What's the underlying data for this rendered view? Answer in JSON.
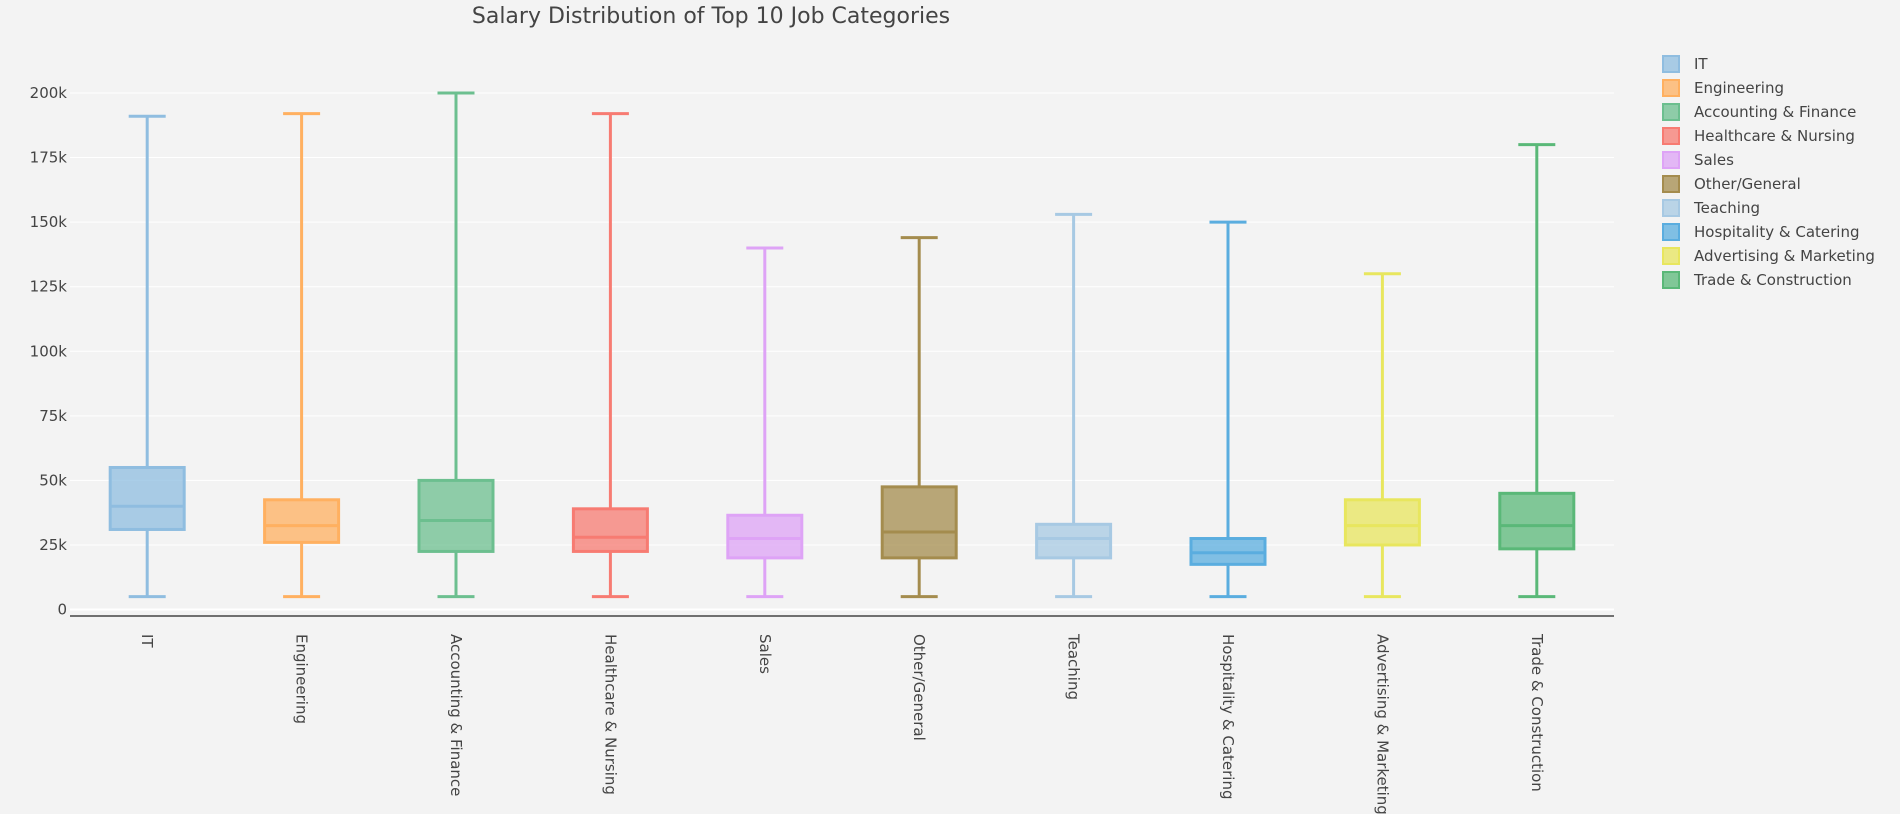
{
  "chart_data": {
    "type": "box",
    "title": "Salary Distribution of Top 10 Job Categories",
    "xlabel": "",
    "ylabel": "",
    "ylim": [
      -2500,
      212000
    ],
    "yticks": [
      0,
      25000,
      50000,
      75000,
      100000,
      125000,
      150000,
      175000,
      200000
    ],
    "ytick_labels": [
      "0",
      "25k",
      "50k",
      "75k",
      "100k",
      "125k",
      "150k",
      "175k",
      "200k"
    ],
    "grid": true,
    "legend_position": "top-right",
    "categories": [
      "IT",
      "Engineering",
      "Accounting & Finance",
      "Healthcare & Nursing",
      "Sales",
      "Other/General",
      "Teaching",
      "Hospitality & Catering",
      "Advertising & Marketing",
      "Trade & Construction"
    ],
    "series": [
      {
        "name": "IT",
        "color": "#8fbde0",
        "min": 5000,
        "q1": 31000,
        "median": 40000,
        "q3": 55000,
        "max": 191000
      },
      {
        "name": "Engineering",
        "color": "#ffb060",
        "min": 5000,
        "q1": 26000,
        "median": 32500,
        "q3": 42500,
        "max": 192000
      },
      {
        "name": "Accounting & Finance",
        "color": "#6cbf8f",
        "min": 5000,
        "q1": 22500,
        "median": 34500,
        "q3": 50000,
        "max": 200000
      },
      {
        "name": "Healthcare & Nursing",
        "color": "#f77b72",
        "min": 5000,
        "q1": 22500,
        "median": 28000,
        "q3": 39000,
        "max": 192000
      },
      {
        "name": "Sales",
        "color": "#dea3f6",
        "min": 5000,
        "q1": 20000,
        "median": 27500,
        "q3": 36500,
        "max": 140000
      },
      {
        "name": "Other/General",
        "color": "#a48c4e",
        "min": 5000,
        "q1": 20000,
        "median": 30000,
        "q3": 47500,
        "max": 144000
      },
      {
        "name": "Teaching",
        "color": "#a7c9e3",
        "min": 5000,
        "q1": 20000,
        "median": 27500,
        "q3": 33000,
        "max": 153000
      },
      {
        "name": "Hospitality & Catering",
        "color": "#5aaddf",
        "min": 5000,
        "q1": 17500,
        "median": 22000,
        "q3": 27500,
        "max": 150000
      },
      {
        "name": "Advertising & Marketing",
        "color": "#e8e65e",
        "min": 5000,
        "q1": 25000,
        "median": 32500,
        "q3": 42500,
        "max": 130000
      },
      {
        "name": "Trade & Construction",
        "color": "#5ab878",
        "min": 5000,
        "q1": 23500,
        "median": 32500,
        "q3": 45000,
        "max": 180000
      }
    ]
  }
}
